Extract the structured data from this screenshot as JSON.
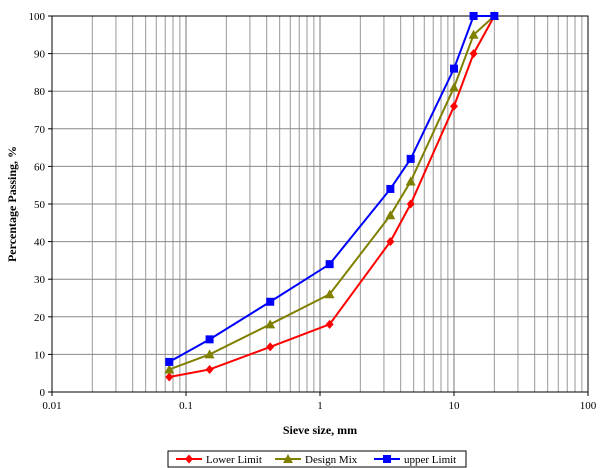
{
  "chart_data": {
    "type": "line",
    "xscale": "log",
    "xlim": [
      0.01,
      100
    ],
    "ylim": [
      0,
      100
    ],
    "xlabel": "Sieve size, mm",
    "ylabel": "Percentage Passing, %",
    "x_ticks": [
      "0.01",
      "0.1",
      "1",
      "10",
      "100"
    ],
    "y_ticks": [
      "0",
      "10",
      "20",
      "30",
      "40",
      "50",
      "60",
      "70",
      "80",
      "90",
      "100"
    ],
    "grid": true,
    "legend_position": "bottom",
    "series": [
      {
        "name": "Lower Limit",
        "color": "#ff0000",
        "marker": "diamond",
        "x": [
          0.075,
          0.15,
          0.425,
          1.18,
          3.35,
          4.75,
          10,
          14,
          20
        ],
        "y": [
          4,
          6,
          12,
          18,
          40,
          50,
          76,
          90,
          100
        ]
      },
      {
        "name": "Design Mix",
        "color": "#808000",
        "marker": "triangle",
        "x": [
          0.075,
          0.15,
          0.425,
          1.18,
          3.35,
          4.75,
          10,
          14,
          20
        ],
        "y": [
          6,
          10,
          18,
          26,
          47,
          56,
          81,
          95,
          100
        ]
      },
      {
        "name": "upper Limit",
        "color": "#0000ff",
        "marker": "square",
        "x": [
          0.075,
          0.15,
          0.425,
          1.18,
          3.35,
          4.75,
          10,
          14,
          20
        ],
        "y": [
          8,
          14,
          24,
          34,
          54,
          62,
          86,
          100,
          100
        ]
      }
    ]
  }
}
